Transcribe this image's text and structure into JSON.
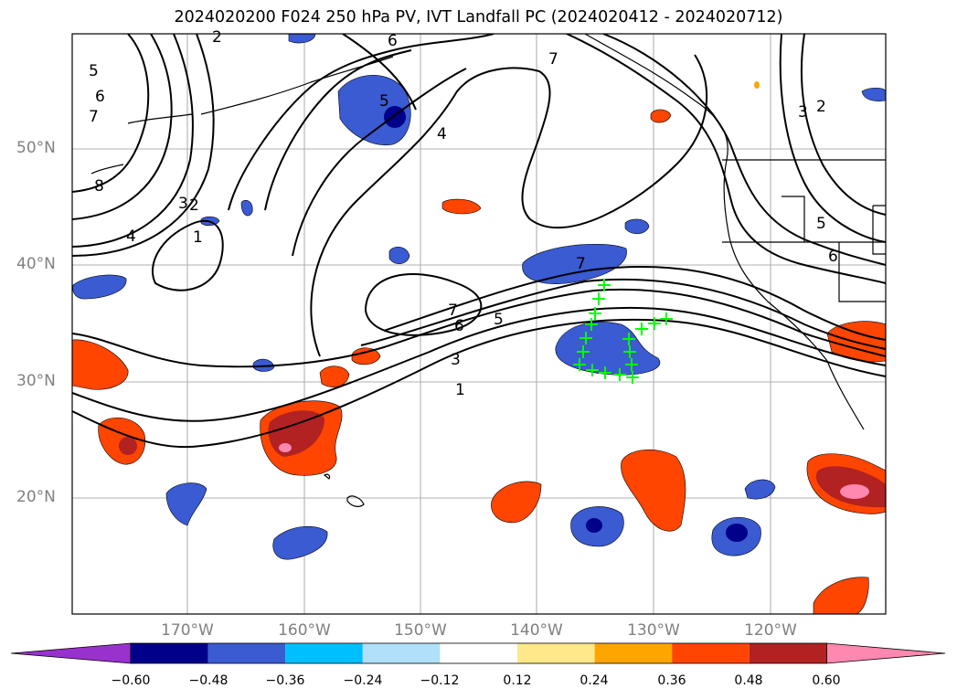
{
  "title": "2024020200 F024 250 hPa PV, IVT Landfall PC (2024020412 - 2024020712)",
  "map": {
    "lon_labels": [
      "170°W",
      "160°W",
      "150°W",
      "140°W",
      "130°W",
      "120°W"
    ],
    "lat_labels": [
      "50°N",
      "40°N",
      "30°N",
      "20°N"
    ],
    "contour_labels": [
      "5",
      "6",
      "7",
      "8",
      "4",
      "3",
      "2",
      "1",
      "2",
      "6",
      "5",
      "4",
      "7",
      "7",
      "6",
      "5",
      "3",
      "1",
      "3",
      "2",
      "5",
      "6",
      "7"
    ]
  },
  "colorbar": {
    "tick_labels": [
      "−0.60",
      "−0.48",
      "−0.36",
      "−0.24",
      "−0.12",
      "0.12",
      "0.24",
      "0.36",
      "0.48",
      "0.60"
    ],
    "colors": [
      "#9932cc",
      "#00008b",
      "#3a5bd2",
      "#00bfff",
      "#b0e0fa",
      "#ffffff",
      "#ffe88a",
      "#ffa500",
      "#ff4500",
      "#b22222",
      "#ff88b0"
    ]
  }
}
